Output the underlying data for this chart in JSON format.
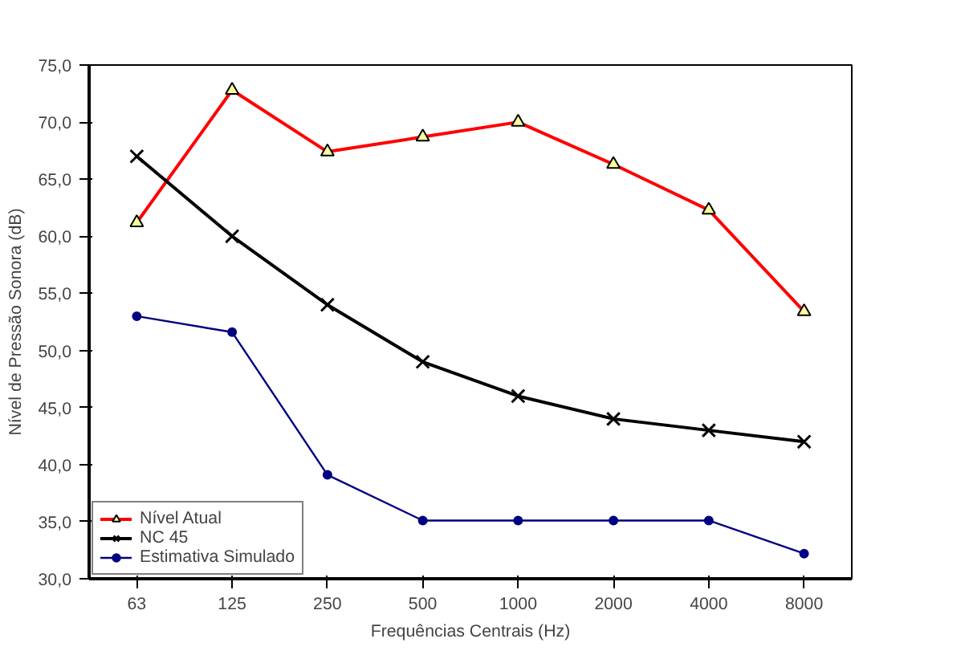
{
  "chart_data": {
    "type": "line",
    "xlabel": "Frequências Centrais (Hz)",
    "ylabel": "Nível de Pressão Sonora (dB)",
    "categories": [
      "63",
      "125",
      "250",
      "500",
      "1000",
      "2000",
      "4000",
      "8000"
    ],
    "ylim": [
      30,
      75
    ],
    "yticks": [
      {
        "value": 30,
        "label": "30,0"
      },
      {
        "value": 35,
        "label": "35,0"
      },
      {
        "value": 40,
        "label": "40,0"
      },
      {
        "value": 45,
        "label": "45,0"
      },
      {
        "value": 50,
        "label": "50,0"
      },
      {
        "value": 55,
        "label": "55,0"
      },
      {
        "value": 60,
        "label": "60,0"
      },
      {
        "value": 65,
        "label": "65,0"
      },
      {
        "value": 70,
        "label": "70,0"
      },
      {
        "value": 75,
        "label": "75,0"
      }
    ],
    "grid": false,
    "legend": "bottom left",
    "series": [
      {
        "name": "Nível Atual",
        "color": "#ff0000",
        "marker": "triangle",
        "values": [
          61.2,
          72.8,
          67.4,
          68.7,
          70.0,
          66.3,
          62.3,
          53.4
        ]
      },
      {
        "name": "NC 45",
        "color": "#000000",
        "marker": "cross",
        "values": [
          67,
          60,
          54,
          49,
          46,
          44,
          43,
          42
        ]
      },
      {
        "name": "Estimativa Simulado",
        "color": "#000080",
        "marker": "circle",
        "values": [
          53.0,
          51.6,
          39.1,
          35.1,
          35.1,
          35.1,
          35.1,
          32.2
        ]
      }
    ]
  }
}
